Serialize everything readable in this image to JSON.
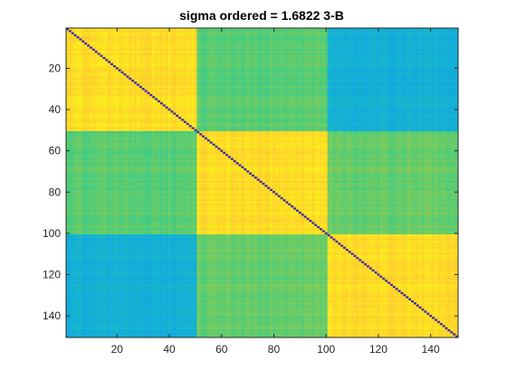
{
  "chart_data": {
    "type": "heatmap",
    "title": "sigma ordered = 1.6822 3-B",
    "xlabel": "",
    "ylabel": "",
    "size": 150,
    "xlim": [
      0.5,
      150.5
    ],
    "ylim": [
      0.5,
      150.5
    ],
    "y_reversed": true,
    "xticks": [
      20,
      40,
      60,
      80,
      100,
      120,
      140
    ],
    "yticks": [
      20,
      40,
      60,
      80,
      100,
      120,
      140
    ],
    "grid": false,
    "colormap": "parula",
    "blocks": [
      {
        "rows": [
          1,
          50
        ],
        "cols": [
          1,
          50
        ],
        "level": 0.93
      },
      {
        "rows": [
          1,
          50
        ],
        "cols": [
          51,
          100
        ],
        "level": 0.62
      },
      {
        "rows": [
          1,
          50
        ],
        "cols": [
          101,
          150
        ],
        "level": 0.4
      },
      {
        "rows": [
          51,
          100
        ],
        "cols": [
          1,
          50
        ],
        "level": 0.62
      },
      {
        "rows": [
          51,
          100
        ],
        "cols": [
          51,
          100
        ],
        "level": 0.93
      },
      {
        "rows": [
          51,
          100
        ],
        "cols": [
          101,
          150
        ],
        "level": 0.64
      },
      {
        "rows": [
          101,
          150
        ],
        "cols": [
          1,
          50
        ],
        "level": 0.4
      },
      {
        "rows": [
          101,
          150
        ],
        "cols": [
          51,
          100
        ],
        "level": 0.64
      },
      {
        "rows": [
          101,
          150
        ],
        "cols": [
          101,
          150
        ],
        "level": 0.93
      }
    ],
    "diagonal_level": 0.0
  }
}
